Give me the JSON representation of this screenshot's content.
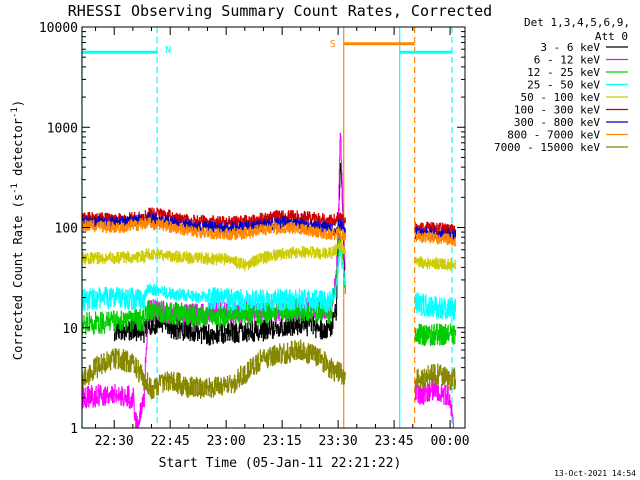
{
  "chart_data": {
    "type": "line",
    "title": "RHESSI Observing Summary Count Rates, Corrected",
    "xlabel": "Start Time (05-Jan-11 22:21:22)",
    "ylabel_main": "Corrected Count Rate (s",
    "ylabel_exp": "-1",
    "ylabel_mid": " detector",
    "ylabel_exp2": "-1",
    "ylabel_end": ")",
    "x_start_minute": 1341.37,
    "x_end_minute": 1444,
    "ylim": [
      1,
      10000
    ],
    "y_scale": "log",
    "grid": false,
    "legend_placement": "top-right (outside plot)",
    "legend_header": "Det 1,3,4,5,6,9,",
    "legend_header2": "Att 0",
    "date_stamp": "13-Oct-2021 14:54",
    "x_ticks": [
      {
        "minute": 1350,
        "label": "22:30"
      },
      {
        "minute": 1365,
        "label": "22:45"
      },
      {
        "minute": 1380,
        "label": "23:00"
      },
      {
        "minute": 1395,
        "label": "23:15"
      },
      {
        "minute": 1410,
        "label": "23:30"
      },
      {
        "minute": 1425,
        "label": "23:45"
      },
      {
        "minute": 1440,
        "label": "00:00"
      }
    ],
    "y_ticks": [
      {
        "value": 1,
        "label": "1"
      },
      {
        "value": 10,
        "label": "10"
      },
      {
        "value": 100,
        "label": "100"
      },
      {
        "value": 1000,
        "label": "1000"
      },
      {
        "value": 10000,
        "label": "10000"
      }
    ],
    "annotations": [
      {
        "label": "N",
        "color": "#00ffff"
      },
      {
        "label": "S",
        "color": "#ff8800"
      }
    ],
    "markers": {
      "night_bar": {
        "x": [
          1341.37,
          1361.5
        ],
        "y": 5600,
        "color": "#00ffff"
      },
      "night_bar2": {
        "x": [
          1426.5,
          1440.5
        ],
        "y": 5600,
        "color": "#00ffff"
      },
      "night_dashed": [
        {
          "x": 1361.5
        },
        {
          "x": 1440.5
        }
      ],
      "night_solid": [
        {
          "x": 1341.37
        },
        {
          "x": 1426.5
        }
      ],
      "saa_bar": {
        "x": [
          1411.5,
          1430.5
        ],
        "y": 6800,
        "color": "#ff8800"
      },
      "saa_solid": {
        "x": 1411.5
      },
      "saa_dashed": {
        "x": 1430.5
      },
      "data_gap": [
        1412,
        1430.5
      ]
    },
    "series": [
      {
        "name": "3 - 6 keV",
        "color": "#000000",
        "points": [
          [
            1350,
            9
          ],
          [
            1355,
            9.5
          ],
          [
            1358,
            9
          ],
          [
            1359,
            11
          ],
          [
            1362,
            11
          ],
          [
            1365,
            10
          ],
          [
            1370,
            9.5
          ],
          [
            1375,
            8.5
          ],
          [
            1380,
            9
          ],
          [
            1385,
            9
          ],
          [
            1390,
            9.5
          ],
          [
            1395,
            10.5
          ],
          [
            1400,
            11
          ],
          [
            1405,
            10
          ],
          [
            1408,
            9.5
          ],
          [
            1409.5,
            15
          ],
          [
            1410.2,
            160
          ],
          [
            1410.6,
            450
          ],
          [
            1411,
            250
          ],
          [
            1411.8,
            25
          ]
        ]
      },
      {
        "name": "6 - 12 keV",
        "color": "#ff00ff",
        "points": [
          [
            1341.37,
            2
          ],
          [
            1350,
            2.2
          ],
          [
            1355,
            2
          ],
          [
            1356,
            1
          ],
          [
            1358,
            2
          ],
          [
            1359,
            15
          ],
          [
            1365,
            14
          ],
          [
            1370,
            13.5
          ],
          [
            1380,
            14
          ],
          [
            1390,
            14.5
          ],
          [
            1395,
            15
          ],
          [
            1400,
            16
          ],
          [
            1408,
            15
          ],
          [
            1409.5,
            35
          ],
          [
            1410.2,
            200
          ],
          [
            1410.6,
            1000
          ],
          [
            1411,
            300
          ],
          [
            1411.8,
            40
          ],
          [
            1432,
            2
          ],
          [
            1436,
            2.5
          ],
          [
            1440,
            2
          ],
          [
            1441,
            1
          ]
        ]
      },
      {
        "name": "12 - 25 keV",
        "color": "#00cc00",
        "points": [
          [
            1341.37,
            11
          ],
          [
            1350,
            11.5
          ],
          [
            1358,
            12
          ],
          [
            1359,
            15
          ],
          [
            1365,
            14
          ],
          [
            1370,
            13.5
          ],
          [
            1380,
            13
          ],
          [
            1390,
            14
          ],
          [
            1395,
            15
          ],
          [
            1400,
            15
          ],
          [
            1408,
            14
          ],
          [
            1409.5,
            30
          ],
          [
            1410.4,
            80
          ],
          [
            1411,
            60
          ],
          [
            1411.8,
            25
          ],
          [
            1432,
            8.5
          ],
          [
            1436,
            8.5
          ],
          [
            1440,
            8.5
          ],
          [
            1441.5,
            8.5
          ]
        ]
      },
      {
        "name": "25 - 50 keV",
        "color": "#00ffff",
        "points": [
          [
            1341.37,
            19
          ],
          [
            1350,
            20
          ],
          [
            1358,
            19
          ],
          [
            1359,
            25
          ],
          [
            1365,
            22
          ],
          [
            1370,
            21
          ],
          [
            1380,
            19
          ],
          [
            1390,
            18.5
          ],
          [
            1395,
            19
          ],
          [
            1400,
            19
          ],
          [
            1408,
            18
          ],
          [
            1409.5,
            25
          ],
          [
            1410.4,
            60
          ],
          [
            1411,
            45
          ],
          [
            1411.8,
            30
          ],
          [
            1432,
            17
          ],
          [
            1436,
            16
          ],
          [
            1440,
            15.5
          ],
          [
            1441.5,
            15
          ]
        ]
      },
      {
        "name": "50 - 100 keV",
        "color": "#cccc00",
        "points": [
          [
            1341.37,
            49
          ],
          [
            1350,
            50
          ],
          [
            1358,
            51
          ],
          [
            1359,
            55
          ],
          [
            1365,
            52
          ],
          [
            1370,
            50
          ],
          [
            1380,
            48
          ],
          [
            1385,
            42
          ],
          [
            1390,
            50
          ],
          [
            1395,
            55
          ],
          [
            1400,
            57
          ],
          [
            1408,
            55
          ],
          [
            1409.5,
            60
          ],
          [
            1410.4,
            70
          ],
          [
            1411,
            65
          ],
          [
            1411.8,
            55
          ],
          [
            1432,
            45
          ],
          [
            1436,
            44
          ],
          [
            1440,
            43
          ],
          [
            1441.5,
            41
          ]
        ]
      },
      {
        "name": "100 - 300 keV",
        "color": "#cc0000",
        "points": [
          [
            1341.37,
            125
          ],
          [
            1350,
            120
          ],
          [
            1358,
            125
          ],
          [
            1359,
            140
          ],
          [
            1365,
            130
          ],
          [
            1370,
            118
          ],
          [
            1380,
            112
          ],
          [
            1385,
            115
          ],
          [
            1390,
            122
          ],
          [
            1395,
            132
          ],
          [
            1400,
            128
          ],
          [
            1408,
            118
          ],
          [
            1409.5,
            120
          ],
          [
            1410.4,
            130
          ],
          [
            1411,
            125
          ],
          [
            1411.8,
            115
          ],
          [
            1432,
            100
          ],
          [
            1436,
            98
          ],
          [
            1440,
            96
          ],
          [
            1441.5,
            93
          ]
        ]
      },
      {
        "name": "300 - 800 keV",
        "color": "#0000cc",
        "points": [
          [
            1341.37,
            115
          ],
          [
            1350,
            112
          ],
          [
            1358,
            118
          ],
          [
            1359,
            122
          ],
          [
            1365,
            112
          ],
          [
            1370,
            104
          ],
          [
            1380,
            98
          ],
          [
            1385,
            100
          ],
          [
            1390,
            106
          ],
          [
            1395,
            112
          ],
          [
            1400,
            108
          ],
          [
            1408,
            96
          ],
          [
            1409.5,
            92
          ],
          [
            1410.4,
            110
          ],
          [
            1411,
            100
          ],
          [
            1411.8,
            90
          ],
          [
            1432,
            88
          ],
          [
            1436,
            86
          ],
          [
            1440,
            84
          ],
          [
            1441.5,
            83
          ]
        ]
      },
      {
        "name": "800 - 7000 keV",
        "color": "#ff8800",
        "points": [
          [
            1341.37,
            105
          ],
          [
            1350,
            100
          ],
          [
            1358,
            108
          ],
          [
            1359,
            112
          ],
          [
            1365,
            102
          ],
          [
            1370,
            92
          ],
          [
            1380,
            86
          ],
          [
            1385,
            88
          ],
          [
            1390,
            95
          ],
          [
            1395,
            100
          ],
          [
            1400,
            96
          ],
          [
            1408,
            86
          ],
          [
            1409.5,
            84
          ],
          [
            1410.4,
            95
          ],
          [
            1411,
            85
          ],
          [
            1411.8,
            80
          ],
          [
            1432,
            80
          ],
          [
            1436,
            78
          ],
          [
            1440,
            76
          ],
          [
            1441.5,
            74
          ]
        ]
      },
      {
        "name": "7000 - 15000 keV",
        "color": "#888800",
        "points": [
          [
            1341.37,
            3
          ],
          [
            1345,
            4
          ],
          [
            1350,
            5
          ],
          [
            1355,
            4.5
          ],
          [
            1358,
            3
          ],
          [
            1360,
            2.5
          ],
          [
            1365,
            3
          ],
          [
            1370,
            2.5
          ],
          [
            1375,
            2.5
          ],
          [
            1380,
            2.5
          ],
          [
            1385,
            3.5
          ],
          [
            1390,
            5
          ],
          [
            1395,
            5.5
          ],
          [
            1400,
            6
          ],
          [
            1405,
            5
          ],
          [
            1408,
            4
          ],
          [
            1409.5,
            3.5
          ],
          [
            1410.4,
            4
          ],
          [
            1411,
            3.5
          ],
          [
            1411.8,
            3
          ],
          [
            1432,
            3
          ],
          [
            1436,
            3.5
          ],
          [
            1440,
            3
          ],
          [
            1441.5,
            3.2
          ]
        ]
      }
    ]
  }
}
